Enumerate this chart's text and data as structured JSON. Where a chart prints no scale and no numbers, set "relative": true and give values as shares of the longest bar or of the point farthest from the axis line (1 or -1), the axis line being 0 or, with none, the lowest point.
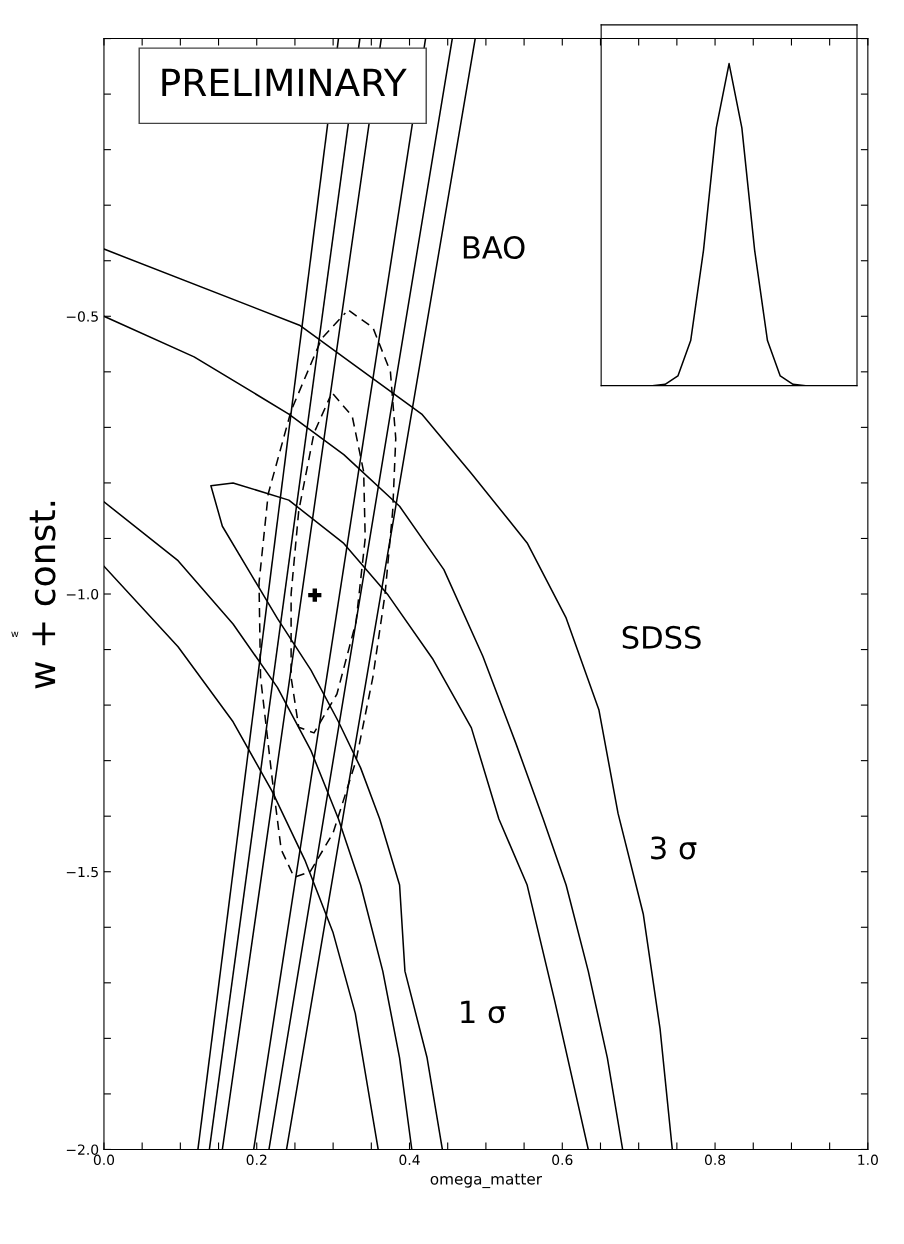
{
  "chart_data": [
    {
      "type": "line",
      "xlabel": "omega_matter",
      "ylabel": "w + const.",
      "annotations": [
        "PRELIMINARY",
        "BAO",
        "SDSS",
        "3 σ",
        "1 σ",
        "w"
      ],
      "xlim": [
        0.0,
        1.0
      ],
      "ylim": [
        -2.0,
        0.0
      ],
      "xticks": [
        {
          "value": 0.0,
          "label": "0.0"
        },
        {
          "value": 0.05,
          "label": null
        },
        {
          "value": 0.1,
          "label": null
        },
        {
          "value": 0.15,
          "label": null
        },
        0.2,
        {
          "value": 0.25,
          "label": null
        },
        {
          "value": 0.3,
          "label": null
        },
        {
          "value": 0.35,
          "label": null
        },
        0.4,
        {
          "value": 0.45,
          "label": null
        },
        {
          "value": 0.5,
          "label": null
        },
        {
          "value": 0.55,
          "label": null
        },
        0.6,
        {
          "value": 0.65,
          "label": null
        },
        {
          "value": 0.7,
          "label": null
        },
        {
          "value": 0.75,
          "label": null
        },
        0.8,
        {
          "value": 0.85,
          "label": null
        },
        {
          "value": 0.9,
          "label": null
        },
        {
          "value": 0.95,
          "label": null
        },
        {
          "value": 1.0,
          "label": "1.0"
        }
      ],
      "yticks": [
        {
          "value": -2.0,
          "label": "−2.0"
        },
        {
          "value": -1.9,
          "label": null
        },
        {
          "value": -1.8,
          "label": null
        },
        {
          "value": -1.7,
          "label": null
        },
        {
          "value": -1.6,
          "label": null
        },
        {
          "value": -1.5,
          "label": "−1.5"
        },
        {
          "value": -1.4,
          "label": null
        },
        {
          "value": -1.3,
          "label": null
        },
        {
          "value": -1.2,
          "label": null
        },
        {
          "value": -1.1,
          "label": null
        },
        {
          "value": -1.0,
          "label": "−1.0"
        },
        {
          "value": -0.9,
          "label": null
        },
        {
          "value": -0.8,
          "label": null
        },
        {
          "value": -0.7,
          "label": null
        },
        {
          "value": -0.6,
          "label": null
        },
        {
          "value": -0.5,
          "label": "−0.5"
        },
        {
          "value": -0.4,
          "label": null
        },
        {
          "value": -0.3,
          "label": null
        },
        {
          "value": -0.2,
          "label": null
        },
        {
          "value": -0.1,
          "label": null
        },
        {
          "value": 0.0,
          "label": null
        }
      ],
      "grid": false,
      "legend": false,
      "series": [
        {
          "color": "#000000",
          "line_style": "solid",
          "x": [
            0.307,
            0.123
          ],
          "values": [
            0.0,
            -2.0
          ]
        },
        {
          "color": "#000000",
          "line_style": "solid",
          "x": [
            0.335,
            0.138
          ],
          "values": [
            0.0,
            -2.0
          ]
        },
        {
          "color": "#000000",
          "line_style": "solid",
          "x": [
            0.363,
            0.155
          ],
          "values": [
            0.0,
            -2.0
          ]
        },
        {
          "color": "#000000",
          "line_style": "solid",
          "x": [
            0.421,
            0.196
          ],
          "values": [
            0.0,
            -2.0
          ]
        },
        {
          "color": "#000000",
          "line_style": "solid",
          "x": [
            0.456,
            0.216
          ],
          "values": [
            0.0,
            -2.0
          ]
        },
        {
          "color": "#000000",
          "line_style": "solid",
          "x": [
            0.486,
            0.239
          ],
          "values": [
            0.0,
            -2.0
          ]
        },
        {
          "color": "#000000",
          "line_style": "solid",
          "x": [
            0.443,
            0.423,
            0.394,
            0.387,
            0.361,
            0.336,
            0.307,
            0.271,
            0.227,
            0.191,
            0.155,
            0.14,
            0.169,
            0.242,
            0.314,
            0.372,
            0.43,
            0.481,
            0.517,
            0.554,
            0.59,
            0.634
          ],
          "values": [
            -2.0,
            -1.835,
            -1.679,
            -1.524,
            -1.405,
            -1.313,
            -1.23,
            -1.137,
            -1.044,
            -0.961,
            -0.878,
            -0.805,
            -0.8,
            -0.831,
            -0.909,
            -1.002,
            -1.116,
            -1.241,
            -1.405,
            -1.524,
            -1.732,
            -2.0
          ]
        },
        {
          "color": "#000000",
          "line_style": "solid",
          "x": [
            0.0,
            0.118,
            0.242,
            0.314,
            0.387,
            0.445,
            0.496,
            0.539,
            0.575,
            0.605,
            0.634,
            0.659,
            0.679
          ],
          "values": [
            -0.5,
            -0.573,
            -0.676,
            -0.749,
            -0.842,
            -0.956,
            -1.112,
            -1.268,
            -1.405,
            -1.524,
            -1.679,
            -1.835,
            -2.0
          ]
        },
        {
          "color": "#000000",
          "line_style": "solid",
          "x": [
            0.0,
            0.097,
            0.169,
            0.227,
            0.271,
            0.307,
            0.336,
            0.365,
            0.387,
            0.403
          ],
          "values": [
            -0.834,
            -0.94,
            -1.054,
            -1.168,
            -1.282,
            -1.405,
            -1.524,
            -1.679,
            -1.835,
            -2.0
          ]
        },
        {
          "color": "#000000",
          "line_style": "solid",
          "x": [
            0.0,
            0.256,
            0.416,
            0.481,
            0.554,
            0.605,
            0.648,
            0.673,
            0.706,
            0.728,
            0.744
          ],
          "values": [
            -0.379,
            -0.516,
            -0.676,
            -0.783,
            -0.908,
            -1.043,
            -1.209,
            -1.395,
            -1.576,
            -1.783,
            -2.0
          ]
        },
        {
          "color": "#000000",
          "line_style": "solid",
          "x": [
            0.0,
            0.097,
            0.169,
            0.22,
            0.263,
            0.3,
            0.329,
            0.359
          ],
          "values": [
            -0.95,
            -1.095,
            -1.23,
            -1.355,
            -1.479,
            -1.61,
            -1.755,
            -2.0
          ]
        },
        {
          "color": "#000000",
          "line_style": "dashed",
          "x": [
            0.321,
            0.352,
            0.375,
            0.382,
            0.378,
            0.368,
            0.352,
            0.33,
            0.3,
            0.27,
            0.249,
            0.232,
            0.22,
            0.205,
            0.203,
            0.215,
            0.245,
            0.285,
            0.316
          ],
          "values": [
            -0.49,
            -0.52,
            -0.6,
            -0.72,
            -0.85,
            -1.0,
            -1.15,
            -1.3,
            -1.43,
            -1.5,
            -1.51,
            -1.46,
            -1.33,
            -1.15,
            -0.98,
            -0.82,
            -0.67,
            -0.54,
            -0.494
          ]
        },
        {
          "color": "#000000",
          "line_style": "dashed",
          "x": [
            0.3,
            0.325,
            0.34,
            0.342,
            0.33,
            0.305,
            0.275,
            0.255,
            0.245,
            0.245,
            0.255,
            0.275,
            0.296
          ],
          "values": [
            -0.64,
            -0.68,
            -0.78,
            -0.9,
            -1.05,
            -1.18,
            -1.25,
            -1.24,
            -1.15,
            -1.0,
            -0.85,
            -0.71,
            -0.645
          ]
        },
        {
          "type": "scatter",
          "color": "#000000",
          "marker": "cross",
          "x": [
            0.276
          ],
          "values": [
            -1.002
          ]
        }
      ]
    },
    {
      "type": "line",
      "relative": true,
      "tick_labels": false,
      "grid": false,
      "legend": false,
      "categories": [
        null,
        null,
        null,
        null,
        null,
        null,
        null,
        null,
        null,
        null,
        null,
        null,
        null,
        null,
        null,
        null,
        null,
        null,
        null,
        null,
        null
      ],
      "series": [
        {
          "color": "#000000",
          "line_style": "solid",
          "values": [
            0,
            0,
            0,
            0,
            0,
            0.004,
            0.03,
            0.14,
            0.42,
            0.8,
            1,
            0.8,
            0.42,
            0.14,
            0.03,
            0.004,
            0,
            0,
            0,
            0,
            0
          ]
        }
      ]
    }
  ]
}
